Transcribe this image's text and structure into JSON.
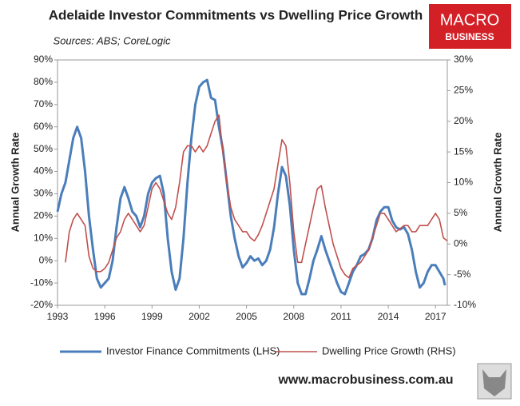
{
  "chart_data": {
    "type": "line",
    "title": "Adelaide Investor Commitments vs Dwelling Price Growth",
    "subtitle": "Sources: ABS; CoreLogic",
    "logo": [
      "MACRO",
      "BUSINESS"
    ],
    "footer": "www.macrobusiness.com.au",
    "ylabel": "Annual Growth Rate",
    "y2label": "Annual Growth Rate",
    "xlim": [
      1993,
      2017.75
    ],
    "xticks": [
      1993,
      1996,
      1999,
      2002,
      2005,
      2008,
      2011,
      2014,
      2017
    ],
    "ylim": [
      -20,
      90
    ],
    "yticks": [
      {
        "value": -20,
        "label": "-20%"
      },
      {
        "value": -10,
        "label": "-10%"
      },
      {
        "value": 0,
        "label": "0%"
      },
      {
        "value": 10,
        "label": "10%"
      },
      {
        "value": 20,
        "label": "20%"
      },
      {
        "value": 30,
        "label": "30%"
      },
      {
        "value": 40,
        "label": "40%"
      },
      {
        "value": 50,
        "label": "50%"
      },
      {
        "value": 60,
        "label": "60%"
      },
      {
        "value": 70,
        "label": "70%"
      },
      {
        "value": 80,
        "label": "80%"
      },
      {
        "value": 90,
        "label": "90%"
      }
    ],
    "y2lim": [
      -10,
      30
    ],
    "y2ticks": [
      {
        "value": -10,
        "label": "-10%"
      },
      {
        "value": -5,
        "label": "-5%"
      },
      {
        "value": 0,
        "label": "0%"
      },
      {
        "value": 5,
        "label": "5%"
      },
      {
        "value": 10,
        "label": "10%"
      },
      {
        "value": 15,
        "label": "15%"
      },
      {
        "value": 20,
        "label": "20%"
      },
      {
        "value": 25,
        "label": "25%"
      },
      {
        "value": 30,
        "label": "30%"
      }
    ],
    "grid": false,
    "series": [
      {
        "name": "Investor Finance Commitments (LHS)",
        "color": "#4a7ebb",
        "axis": "y",
        "x": [
          1993,
          1993.25,
          1993.5,
          1993.75,
          1994,
          1994.25,
          1994.5,
          1994.75,
          1995,
          1995.25,
          1995.5,
          1995.75,
          1996,
          1996.25,
          1996.5,
          1996.75,
          1997,
          1997.25,
          1997.5,
          1997.75,
          1998,
          1998.25,
          1998.5,
          1998.75,
          1999,
          1999.25,
          1999.5,
          1999.75,
          2000,
          2000.25,
          2000.5,
          2000.75,
          2001,
          2001.25,
          2001.5,
          2001.75,
          2002,
          2002.25,
          2002.5,
          2002.75,
          2003,
          2003.25,
          2003.5,
          2003.75,
          2004,
          2004.25,
          2004.5,
          2004.75,
          2005,
          2005.25,
          2005.5,
          2005.75,
          2006,
          2006.25,
          2006.5,
          2006.75,
          2007,
          2007.25,
          2007.5,
          2007.75,
          2008,
          2008.25,
          2008.5,
          2008.75,
          2009,
          2009.25,
          2009.5,
          2009.75,
          2010,
          2010.25,
          2010.5,
          2010.75,
          2011,
          2011.25,
          2011.5,
          2011.75,
          2012,
          2012.25,
          2012.5,
          2012.75,
          2013,
          2013.25,
          2013.5,
          2013.75,
          2014,
          2014.25,
          2014.5,
          2014.75,
          2015,
          2015.25,
          2015.5,
          2015.75,
          2016,
          2016.25,
          2016.5,
          2016.75,
          2017,
          2017.25,
          2017.5,
          2017.6
        ],
        "values": [
          22,
          30,
          35,
          45,
          55,
          60,
          55,
          40,
          20,
          5,
          -8,
          -12,
          -10,
          -8,
          0,
          15,
          28,
          33,
          28,
          22,
          20,
          15,
          20,
          30,
          35,
          37,
          38,
          30,
          10,
          -5,
          -13,
          -8,
          10,
          35,
          55,
          70,
          78,
          80,
          81,
          73,
          72,
          60,
          50,
          35,
          20,
          10,
          2,
          -3,
          -1,
          2,
          0,
          1,
          -2,
          0,
          5,
          15,
          30,
          42,
          38,
          25,
          5,
          -10,
          -15,
          -15,
          -8,
          0,
          5,
          11,
          5,
          0,
          -5,
          -10,
          -14,
          -15,
          -10,
          -5,
          -2,
          2,
          3,
          5,
          10,
          18,
          22,
          24,
          24,
          18,
          15,
          14,
          15,
          12,
          5,
          -5,
          -12,
          -10,
          -5,
          -2,
          -2,
          -5,
          -8,
          -11
        ]
      },
      {
        "name": "Dwelling Price Growth (RHS)",
        "color": "#c0504d",
        "axis": "y2",
        "x": [
          1993.5,
          1993.75,
          1994,
          1994.25,
          1994.5,
          1994.75,
          1995,
          1995.25,
          1995.5,
          1995.75,
          1996,
          1996.25,
          1996.5,
          1996.75,
          1997,
          1997.25,
          1997.5,
          1997.75,
          1998,
          1998.25,
          1998.5,
          1998.75,
          1999,
          1999.25,
          1999.5,
          1999.75,
          2000,
          2000.25,
          2000.5,
          2000.75,
          2001,
          2001.25,
          2001.5,
          2001.75,
          2002,
          2002.25,
          2002.5,
          2002.75,
          2003,
          2003.25,
          2003.5,
          2003.75,
          2004,
          2004.25,
          2004.5,
          2004.75,
          2005,
          2005.25,
          2005.5,
          2005.75,
          2006,
          2006.25,
          2006.5,
          2006.75,
          2007,
          2007.25,
          2007.5,
          2007.75,
          2008,
          2008.25,
          2008.5,
          2008.75,
          2009,
          2009.25,
          2009.5,
          2009.75,
          2010,
          2010.25,
          2010.5,
          2010.75,
          2011,
          2011.25,
          2011.5,
          2011.75,
          2012,
          2012.25,
          2012.5,
          2012.75,
          2013,
          2013.25,
          2013.5,
          2013.75,
          2014,
          2014.25,
          2014.5,
          2014.75,
          2015,
          2015.25,
          2015.5,
          2015.75,
          2016,
          2016.25,
          2016.5,
          2016.75,
          2017,
          2017.25,
          2017.5,
          2017.75
        ],
        "values": [
          -3,
          2,
          4,
          5,
          4,
          3,
          -2,
          -4,
          -4.5,
          -4.5,
          -4,
          -3,
          -1,
          1,
          2,
          4,
          5,
          4,
          3,
          2,
          3,
          6,
          9,
          10,
          9,
          7,
          5,
          4,
          6,
          10,
          15,
          16,
          16,
          15,
          16,
          15,
          16,
          18,
          20,
          21,
          15,
          10,
          6,
          4,
          3,
          2,
          2,
          1,
          0.5,
          1.5,
          3,
          5,
          7,
          9,
          13,
          17,
          16,
          10,
          2,
          -3,
          -3,
          0,
          3,
          6,
          9,
          9.5,
          6,
          3,
          0,
          -2,
          -4,
          -5,
          -5.5,
          -4,
          -3.5,
          -3,
          -2,
          -1,
          1,
          3,
          5,
          5,
          4,
          3,
          2,
          2.5,
          3,
          3,
          2,
          2,
          3,
          3,
          3,
          4,
          5,
          4,
          1,
          0.5
        ]
      }
    ]
  }
}
